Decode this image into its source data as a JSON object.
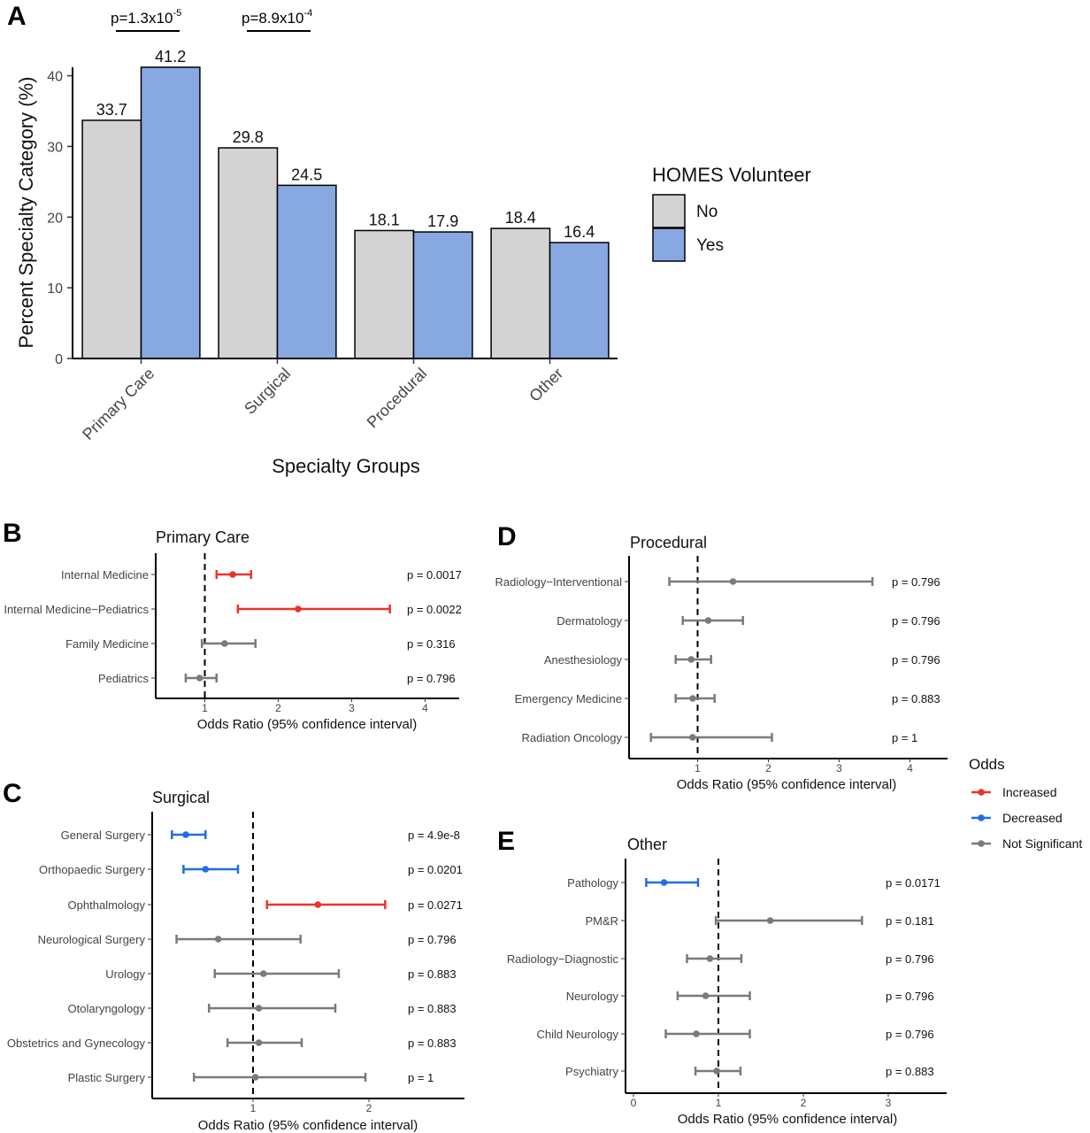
{
  "colors": {
    "no": "#d3d3d3",
    "yes": "#88a8e2",
    "increased": "#e8352a",
    "decreased": "#1f6fe0",
    "not_significant": "#7a7a7a"
  },
  "panel_a": {
    "letter": "A",
    "ylabel": "Percent Specialty Category (%)",
    "xlabel": "Specialty Groups",
    "yticks": [
      "0",
      "10",
      "20",
      "30",
      "40"
    ],
    "categories": [
      "Primary Care",
      "Surgical",
      "Procedural",
      "Other"
    ],
    "pvalues": [
      {
        "base": "p=1.3x10",
        "exp": "-5"
      },
      {
        "base": "p=8.9x10",
        "exp": "-4"
      }
    ],
    "legend": {
      "title": "HOMES Volunteer",
      "no": "No",
      "yes": "Yes"
    }
  },
  "panel_b": {
    "letter": "B",
    "title": "Primary Care",
    "xlabel": "Odds Ratio (95% confidence interval)",
    "xticks": [
      "1",
      "2",
      "3",
      "4"
    ]
  },
  "panel_c": {
    "letter": "C",
    "title": "Surgical",
    "xlabel": "Odds Ratio (95% confidence interval)",
    "xticks": [
      "1",
      "2"
    ]
  },
  "panel_d": {
    "letter": "D",
    "title": "Procedural",
    "xlabel": "Odds Ratio (95% confidence interval)",
    "xticks": [
      "1",
      "2",
      "3",
      "4"
    ]
  },
  "panel_e": {
    "letter": "E",
    "title": "Other",
    "xlabel": "Odds Ratio (95% confidence interval)",
    "xticks": [
      "0",
      "1",
      "2",
      "3"
    ]
  },
  "odds_legend": {
    "title": "Odds",
    "increased": "Increased",
    "decreased": "Decreased",
    "not_significant": "Not Significant"
  },
  "chart_data": [
    {
      "type": "bar",
      "categories": [
        "Primary Care",
        "Surgical",
        "Procedural",
        "Other"
      ],
      "series": [
        {
          "name": "No",
          "values": [
            33.7,
            29.8,
            18.1,
            18.4
          ],
          "labels": [
            "33.7",
            "29.8",
            "18.1",
            "18.4"
          ]
        },
        {
          "name": "Yes",
          "values": [
            41.2,
            24.5,
            17.9,
            16.4
          ],
          "labels": [
            "41.2",
            "24.5",
            "17.9",
            "16.4"
          ]
        }
      ],
      "ylim": [
        0,
        41.2
      ],
      "xlabel": "Specialty Groups",
      "ylabel": "Percent Specialty Category (%)",
      "legend": "right"
    },
    {
      "type": "scatter",
      "title": "Primary Care",
      "xlim": [
        0.3,
        4.5
      ],
      "rows": [
        {
          "label": "Internal Medicine",
          "or": 1.38,
          "lo": 1.16,
          "hi": 1.63,
          "p": "p = 0.0017",
          "sig": "increased"
        },
        {
          "label": "Internal Medicine−Pediatrics",
          "or": 2.27,
          "lo": 1.45,
          "hi": 3.52,
          "p": "p = 0.0022",
          "sig": "increased"
        },
        {
          "label": "Family Medicine",
          "or": 1.27,
          "lo": 0.96,
          "hi": 1.69,
          "p": "p = 0.316",
          "sig": "not_significant"
        },
        {
          "label": "Pediatrics",
          "or": 0.93,
          "lo": 0.74,
          "hi": 1.16,
          "p": "p = 0.796",
          "sig": "not_significant"
        }
      ]
    },
    {
      "type": "scatter",
      "title": "Surgical",
      "xlim": [
        0.1,
        2.85
      ],
      "rows": [
        {
          "label": "General Surgery",
          "or": 0.42,
          "lo": 0.3,
          "hi": 0.59,
          "p": "p = 4.9e-8",
          "sig": "decreased"
        },
        {
          "label": "Orthopaedic Surgery",
          "or": 0.59,
          "lo": 0.4,
          "hi": 0.87,
          "p": "p = 0.0201",
          "sig": "decreased"
        },
        {
          "label": "Ophthalmology",
          "or": 1.56,
          "lo": 1.12,
          "hi": 2.14,
          "p": "p = 0.0271",
          "sig": "increased"
        },
        {
          "label": "Neurological Surgery",
          "or": 0.7,
          "lo": 0.34,
          "hi": 1.41,
          "p": "p = 0.796",
          "sig": "not_significant"
        },
        {
          "label": "Urology",
          "or": 1.09,
          "lo": 0.67,
          "hi": 1.74,
          "p": "p = 0.883",
          "sig": "not_significant"
        },
        {
          "label": "Otolaryngology",
          "or": 1.05,
          "lo": 0.62,
          "hi": 1.71,
          "p": "p = 0.883",
          "sig": "not_significant"
        },
        {
          "label": "Obstetrics and Gynecology",
          "or": 1.05,
          "lo": 0.78,
          "hi": 1.42,
          "p": "p = 0.883",
          "sig": "not_significant"
        },
        {
          "label": "Plastic Surgery",
          "or": 1.02,
          "lo": 0.49,
          "hi": 1.97,
          "p": "p = 1",
          "sig": "not_significant"
        }
      ]
    },
    {
      "type": "scatter",
      "title": "Procedural",
      "xlim": [
        0.1,
        4.4
      ],
      "rows": [
        {
          "label": "Radiology−Interventional",
          "or": 1.5,
          "lo": 0.6,
          "hi": 3.47,
          "p": "p = 0.796",
          "sig": "not_significant"
        },
        {
          "label": "Dermatology",
          "or": 1.15,
          "lo": 0.79,
          "hi": 1.64,
          "p": "p = 0.796",
          "sig": "not_significant"
        },
        {
          "label": "Anesthesiology",
          "or": 0.91,
          "lo": 0.69,
          "hi": 1.19,
          "p": "p = 0.796",
          "sig": "not_significant"
        },
        {
          "label": "Emergency Medicine",
          "or": 0.93,
          "lo": 0.69,
          "hi": 1.24,
          "p": "p = 0.883",
          "sig": "not_significant"
        },
        {
          "label": "Radiation Oncology",
          "or": 0.93,
          "lo": 0.34,
          "hi": 2.05,
          "p": "p = 1",
          "sig": "not_significant"
        }
      ]
    },
    {
      "type": "scatter",
      "title": "Other",
      "xlim": [
        -0.1,
        3.6
      ],
      "rows": [
        {
          "label": "Pathology",
          "or": 0.36,
          "lo": 0.15,
          "hi": 0.76,
          "p": "p = 0.0171",
          "sig": "decreased"
        },
        {
          "label": "PM&R",
          "or": 1.61,
          "lo": 0.97,
          "hi": 2.69,
          "p": "p = 0.181",
          "sig": "not_significant"
        },
        {
          "label": "Radiology−Diagnostic",
          "or": 0.9,
          "lo": 0.63,
          "hi": 1.27,
          "p": "p = 0.796",
          "sig": "not_significant"
        },
        {
          "label": "Neurology",
          "or": 0.85,
          "lo": 0.52,
          "hi": 1.37,
          "p": "p = 0.796",
          "sig": "not_significant"
        },
        {
          "label": "Child Neurology",
          "or": 0.74,
          "lo": 0.38,
          "hi": 1.37,
          "p": "p = 0.796",
          "sig": "not_significant"
        },
        {
          "label": "Psychiatry",
          "or": 0.98,
          "lo": 0.73,
          "hi": 1.26,
          "p": "p = 0.883",
          "sig": "not_significant"
        }
      ]
    }
  ]
}
